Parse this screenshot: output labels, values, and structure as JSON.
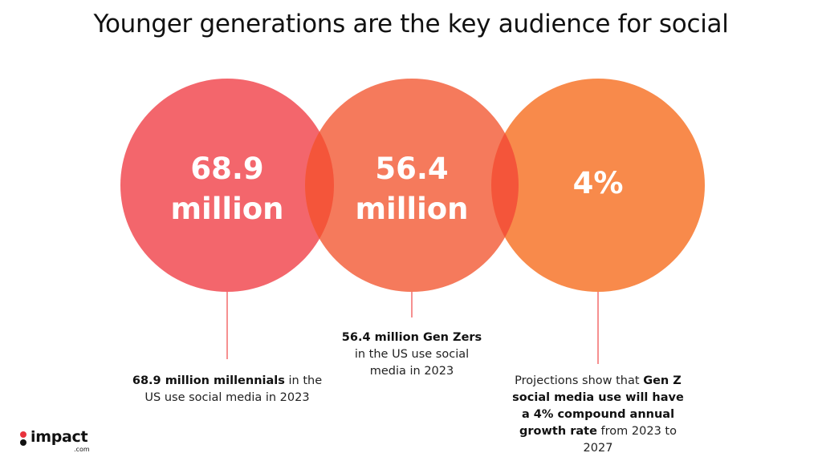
{
  "title": "Younger generations are the key audience for social",
  "colors": {
    "circle1": "#f3666c",
    "circle2": "#f57a5c",
    "circle3": "#f88a4b",
    "overlap": "#f4553a",
    "line": "#f26b6b",
    "text": "#111111",
    "logo_red": "#e8323c"
  },
  "stats": [
    {
      "big_line1": "68.9",
      "big_line2": "million",
      "caption_bold": "68.9 million millennials",
      "caption_rest": " in the US use social media in 2023"
    },
    {
      "big_line1": "56.4",
      "big_line2": "million",
      "caption_bold": "56.4 million Gen Zers",
      "caption_rest": " in the US use social media in 2023"
    },
    {
      "big_line1": "4%",
      "caption_pre": "Projections show that ",
      "caption_bold1": "Gen Z social media use will have a 4% compound annual growth rate",
      "caption_rest": " from 2023 to 2027"
    }
  ],
  "logo": {
    "name": "impact",
    "sub": ".com"
  }
}
